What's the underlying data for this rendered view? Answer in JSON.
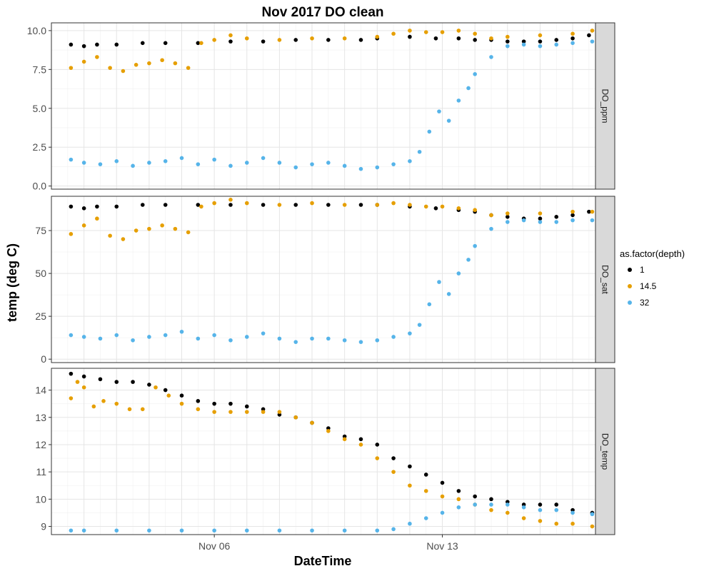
{
  "chart_data": {
    "type": "scatter",
    "title": "Nov 2017 DO clean",
    "xlabel": "DateTime",
    "ylabel": "temp (deg C)",
    "x_ticks": [
      "Nov 06",
      "Nov 13"
    ],
    "x_tick_days": [
      6,
      13
    ],
    "x_range_days": [
      1,
      17.7
    ],
    "legend": {
      "title": "as.factor(depth)",
      "position": "right",
      "entries": [
        {
          "label": "1",
          "color": "#000000"
        },
        {
          "label": "14.5",
          "color": "#E69F00"
        },
        {
          "label": "32",
          "color": "#56B4E9"
        }
      ]
    },
    "facets": [
      {
        "label": "DO_ppm",
        "ylim": [
          -0.2,
          10.5
        ],
        "yticks": [
          0.0,
          2.5,
          5.0,
          7.5,
          10.0
        ],
        "tick_labels": [
          "0.0",
          "2.5",
          "5.0",
          "7.5",
          "10.0"
        ],
        "series": [
          {
            "name": "1",
            "x": [
              1.6,
              2.0,
              2.4,
              3.0,
              3.8,
              4.5,
              5.5,
              6.5,
              7.5,
              8.5,
              9.5,
              10.5,
              11.0,
              12.0,
              12.8,
              13.5,
              14.0,
              14.5,
              15.0,
              15.5,
              16.0,
              16.5,
              17.0,
              17.5
            ],
            "y": [
              9.1,
              9.0,
              9.1,
              9.1,
              9.2,
              9.2,
              9.2,
              9.3,
              9.3,
              9.4,
              9.4,
              9.4,
              9.5,
              9.6,
              9.5,
              9.5,
              9.4,
              9.4,
              9.3,
              9.3,
              9.3,
              9.4,
              9.5,
              9.7
            ]
          },
          {
            "name": "14.5",
            "x": [
              1.6,
              2.0,
              2.4,
              2.8,
              3.2,
              3.6,
              4.0,
              4.4,
              4.8,
              5.2,
              5.6,
              6.0,
              6.5,
              7.0,
              8.0,
              9.0,
              10.0,
              11.0,
              11.5,
              12.0,
              12.5,
              13.0,
              13.5,
              14.0,
              14.5,
              15.0,
              16.0,
              17.0,
              17.6
            ],
            "y": [
              7.6,
              8.0,
              8.3,
              7.6,
              7.4,
              7.8,
              7.9,
              8.1,
              7.9,
              7.6,
              9.2,
              9.4,
              9.7,
              9.5,
              9.4,
              9.5,
              9.5,
              9.6,
              9.8,
              10.0,
              9.9,
              9.9,
              10.0,
              9.8,
              9.5,
              9.6,
              9.7,
              9.8,
              10.0
            ]
          },
          {
            "name": "32",
            "x": [
              1.6,
              2.0,
              2.5,
              3.0,
              3.5,
              4.0,
              4.5,
              5.0,
              5.5,
              6.0,
              6.5,
              7.0,
              7.5,
              8.0,
              8.5,
              9.0,
              9.5,
              10.0,
              10.5,
              11.0,
              11.5,
              12.0,
              12.3,
              12.6,
              12.9,
              13.2,
              13.5,
              13.8,
              14.0,
              14.5,
              15.0,
              15.5,
              16.0,
              16.5,
              17.0,
              17.6
            ],
            "y": [
              1.7,
              1.5,
              1.4,
              1.6,
              1.3,
              1.5,
              1.6,
              1.8,
              1.4,
              1.7,
              1.3,
              1.5,
              1.8,
              1.5,
              1.2,
              1.4,
              1.5,
              1.3,
              1.1,
              1.2,
              1.4,
              1.6,
              2.2,
              3.5,
              4.8,
              4.2,
              5.5,
              6.3,
              7.2,
              8.3,
              9.0,
              9.1,
              9.0,
              9.1,
              9.2,
              9.3
            ]
          }
        ]
      },
      {
        "label": "DO_sat",
        "ylim": [
          -2,
          95
        ],
        "yticks": [
          0,
          25,
          50,
          75
        ],
        "tick_labels": [
          "0",
          "25",
          "50",
          "75"
        ],
        "series": [
          {
            "name": "1",
            "x": [
              1.6,
              2.0,
              2.4,
              3.0,
              3.8,
              4.5,
              5.5,
              6.5,
              7.5,
              8.5,
              9.5,
              10.5,
              11.0,
              12.0,
              12.8,
              13.5,
              14.0,
              14.5,
              15.0,
              15.5,
              16.0,
              16.5,
              17.0,
              17.5
            ],
            "y": [
              89,
              88,
              89,
              89,
              90,
              90,
              90,
              90,
              90,
              90,
              90,
              90,
              90,
              89,
              88,
              87,
              86,
              84,
              83,
              82,
              82,
              83,
              84,
              86
            ]
          },
          {
            "name": "14.5",
            "x": [
              1.6,
              2.0,
              2.4,
              2.8,
              3.2,
              3.6,
              4.0,
              4.4,
              4.8,
              5.2,
              5.6,
              6.0,
              6.5,
              7.0,
              8.0,
              9.0,
              10.0,
              11.0,
              11.5,
              12.0,
              12.5,
              13.0,
              13.5,
              14.0,
              14.5,
              15.0,
              16.0,
              17.0,
              17.6
            ],
            "y": [
              73,
              78,
              82,
              72,
              70,
              75,
              76,
              78,
              76,
              74,
              89,
              91,
              93,
              91,
              90,
              91,
              90,
              90,
              91,
              90,
              89,
              89,
              88,
              87,
              84,
              85,
              85,
              86,
              86
            ]
          },
          {
            "name": "32",
            "x": [
              1.6,
              2.0,
              2.5,
              3.0,
              3.5,
              4.0,
              4.5,
              5.0,
              5.5,
              6.0,
              6.5,
              7.0,
              7.5,
              8.0,
              8.5,
              9.0,
              9.5,
              10.0,
              10.5,
              11.0,
              11.5,
              12.0,
              12.3,
              12.6,
              12.9,
              13.2,
              13.5,
              13.8,
              14.0,
              14.5,
              15.0,
              15.5,
              16.0,
              16.5,
              17.0,
              17.6
            ],
            "y": [
              14,
              13,
              12,
              14,
              11,
              13,
              14,
              16,
              12,
              14,
              11,
              13,
              15,
              12,
              10,
              12,
              12,
              11,
              10,
              11,
              13,
              15,
              20,
              32,
              45,
              38,
              50,
              58,
              66,
              76,
              80,
              81,
              80,
              80,
              81,
              81
            ]
          }
        ]
      },
      {
        "label": "DO_temp",
        "ylim": [
          8.7,
          14.8
        ],
        "yticks": [
          9,
          10,
          11,
          12,
          13,
          14
        ],
        "tick_labels": [
          "9",
          "10",
          "11",
          "12",
          "13",
          "14"
        ],
        "series": [
          {
            "name": "1",
            "x": [
              1.6,
              2.0,
              2.5,
              3.0,
              3.5,
              4.0,
              4.5,
              5.0,
              5.5,
              6.0,
              6.5,
              7.0,
              7.5,
              8.0,
              8.5,
              9.0,
              9.5,
              10.0,
              10.5,
              11.0,
              11.5,
              12.0,
              12.5,
              13.0,
              13.5,
              14.0,
              14.5,
              15.0,
              15.5,
              16.0,
              16.5,
              17.0,
              17.6
            ],
            "y": [
              14.6,
              14.5,
              14.4,
              14.3,
              14.3,
              14.2,
              14.0,
              13.8,
              13.6,
              13.5,
              13.5,
              13.4,
              13.3,
              13.1,
              13.0,
              12.8,
              12.6,
              12.3,
              12.2,
              12.0,
              11.5,
              11.2,
              10.9,
              10.6,
              10.3,
              10.1,
              10.0,
              9.9,
              9.8,
              9.8,
              9.8,
              9.6,
              9.5
            ]
          },
          {
            "name": "14.5",
            "x": [
              1.6,
              1.8,
              2.0,
              2.3,
              2.6,
              3.0,
              3.4,
              3.8,
              4.2,
              4.6,
              5.0,
              5.5,
              6.0,
              6.5,
              7.0,
              7.5,
              8.0,
              8.5,
              9.0,
              9.5,
              10.0,
              10.5,
              11.0,
              11.5,
              12.0,
              12.5,
              13.0,
              13.5,
              14.0,
              14.5,
              15.0,
              15.5,
              16.0,
              16.5,
              17.0,
              17.6
            ],
            "y": [
              13.7,
              14.3,
              14.1,
              13.4,
              13.6,
              13.5,
              13.3,
              13.3,
              14.1,
              13.8,
              13.5,
              13.3,
              13.2,
              13.2,
              13.2,
              13.2,
              13.2,
              13.0,
              12.8,
              12.5,
              12.2,
              12.0,
              11.5,
              11.0,
              10.5,
              10.3,
              10.1,
              10.0,
              9.8,
              9.6,
              9.5,
              9.3,
              9.2,
              9.1,
              9.1,
              9.0
            ]
          },
          {
            "name": "32",
            "x": [
              1.6,
              2.0,
              3.0,
              4.0,
              5.0,
              6.0,
              7.0,
              8.0,
              9.0,
              10.0,
              11.0,
              11.5,
              12.0,
              12.5,
              13.0,
              13.5,
              14.0,
              14.5,
              15.0,
              15.5,
              16.0,
              16.5,
              17.0,
              17.6
            ],
            "y": [
              8.85,
              8.85,
              8.85,
              8.85,
              8.85,
              8.85,
              8.85,
              8.85,
              8.85,
              8.85,
              8.85,
              8.9,
              9.1,
              9.3,
              9.5,
              9.7,
              9.8,
              9.8,
              9.8,
              9.7,
              9.6,
              9.6,
              9.5,
              9.45
            ]
          }
        ]
      }
    ]
  }
}
